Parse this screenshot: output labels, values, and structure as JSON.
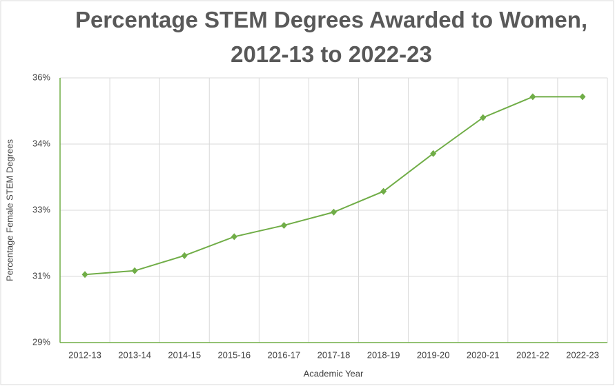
{
  "chart_data": {
    "type": "line",
    "title": "Percentage STEM Degrees Awarded to Women, 2012-13 to 2022-23",
    "x_label": "Academic Year",
    "y_label": "Percentage Female STEM Degrees",
    "categories": [
      "2012-13",
      "2013-14",
      "2014-15",
      "2015-16",
      "2016-17",
      "2017-18",
      "2018-19",
      "2019-20",
      "2020-21",
      "2021-22",
      "2022-23"
    ],
    "values": [
      30.8,
      30.9,
      31.3,
      31.8,
      32.1,
      32.45,
      33.0,
      34.0,
      34.95,
      35.5,
      35.5
    ],
    "color": "#70ad47",
    "ylim": [
      29,
      36
    ],
    "yticks": [
      {
        "value": 29,
        "label": "29%"
      },
      {
        "value": 30.75,
        "label": "31%"
      },
      {
        "value": 32.5,
        "label": "33%"
      },
      {
        "value": 34.25,
        "label": "34%"
      },
      {
        "value": 36,
        "label": "36%"
      }
    ],
    "grid": true
  }
}
